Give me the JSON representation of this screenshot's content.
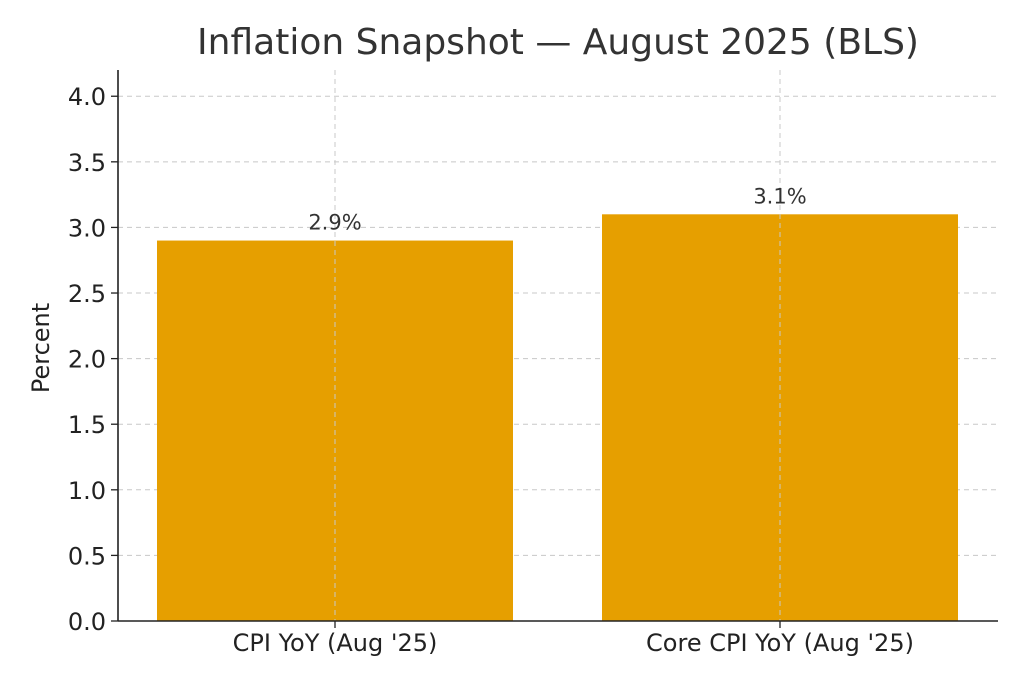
{
  "chart_data": {
    "type": "bar",
    "title": "Inflation Snapshot — August 2025 (BLS)",
    "xlabel": "",
    "ylabel": "Percent",
    "categories": [
      "CPI YoY (Aug '25)",
      "Core CPI YoY (Aug '25)"
    ],
    "values": [
      2.9,
      3.1
    ],
    "data_labels": [
      "2.9%",
      "3.1%"
    ],
    "yticks": [
      0.0,
      0.5,
      1.0,
      1.5,
      2.0,
      2.5,
      3.0,
      3.5,
      4.0
    ],
    "ytick_labels": [
      "0.0",
      "0.5",
      "1.0",
      "1.5",
      "2.0",
      "2.5",
      "3.0",
      "3.5",
      "4.0"
    ],
    "ylim": [
      0,
      4.2
    ],
    "grid": true,
    "legend": "none",
    "bar_color": "#E69F00"
  }
}
